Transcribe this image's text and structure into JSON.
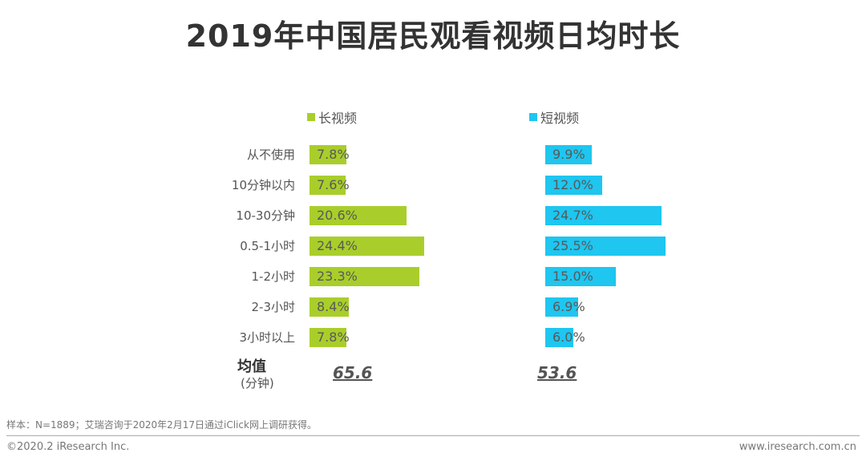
{
  "chart_data": {
    "type": "bar",
    "orientation": "horizontal",
    "title": "2019年中国居民观看视频日均时长",
    "categories": [
      "从不使用",
      "10分钟以内",
      "10-30分钟",
      "0.5-1小时",
      "1-2小时",
      "2-3小时",
      "3小时以上"
    ],
    "series": [
      {
        "name": "长视频",
        "color": "#A9CE2B",
        "values": [
          7.8,
          7.6,
          20.6,
          24.4,
          23.3,
          8.4,
          7.8
        ],
        "labels": [
          "7.8%",
          "7.6%",
          "20.6%",
          "24.4%",
          "23.3%",
          "8.4%",
          "7.8%"
        ],
        "average": "65.6"
      },
      {
        "name": "短视频",
        "color": "#1EC6F0",
        "values": [
          9.9,
          12.0,
          24.7,
          25.5,
          15.0,
          6.9,
          6.0
        ],
        "labels": [
          "9.9%",
          "12.0%",
          "24.7%",
          "25.5%",
          "15.0%",
          "6.9%",
          "6.0%"
        ],
        "average": "53.6"
      }
    ],
    "unit": "%",
    "average_label": "均值",
    "average_unit": "(分钟)"
  },
  "footer": {
    "note": "样本：N=1889；艾瑞咨询于2020年2月17日通过iClick网上调研获得。",
    "copyright": "©2020.2 iResearch Inc.",
    "website": "www.iresearch.com.cn"
  }
}
